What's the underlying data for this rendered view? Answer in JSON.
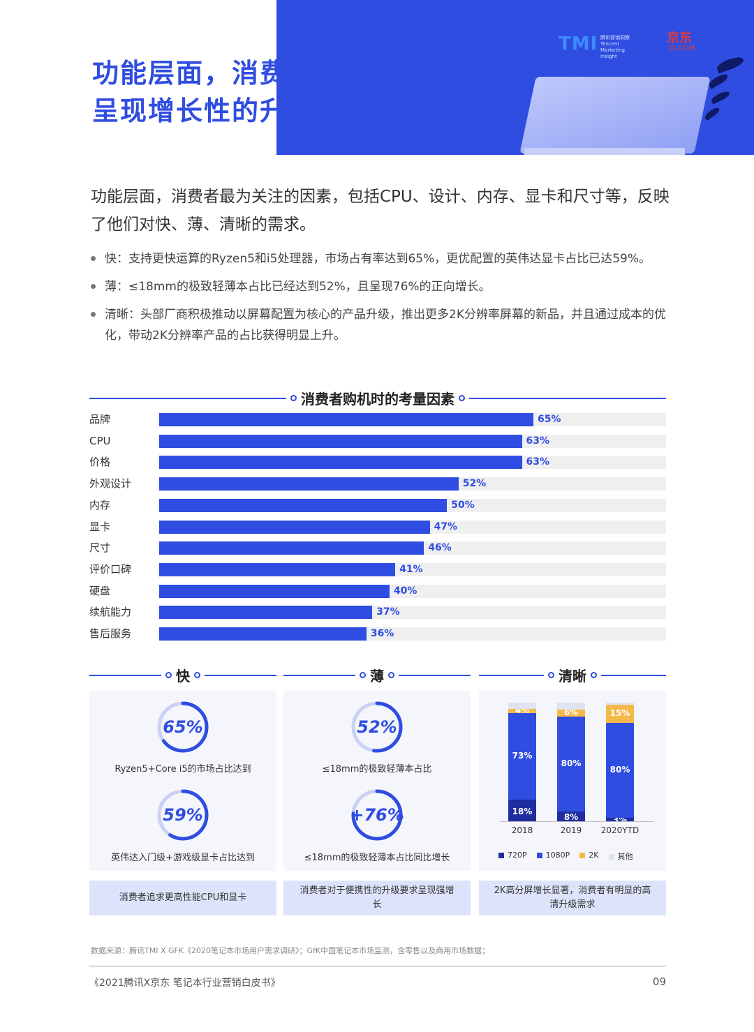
{
  "header": {
    "title_line1": "功能层面，消费者对于快、薄、高清",
    "title_line2": "呈现增长性的升级需求",
    "logo_tmi": "TMI",
    "logo_tmi_text": "腾讯营销洞察 Tencent Marketing Insight",
    "logo_jd": "京东",
    "logo_jd_sub": "JD.COM"
  },
  "intro": "功能层面，消费者最为关注的因素，包括CPU、设计、内存、显卡和尺寸等，反映了他们对快、薄、清晰的需求。",
  "bullets": [
    "快：支持更快运算的Ryzen5和i5处理器，市场占有率达到65%，更优配置的英伟达显卡占比已达59%。",
    "薄：≤18mm的极致轻薄本占比已经达到52%，且呈现76%的正向增长。",
    "清晰：头部厂商积极推动以屏幕配置为核心的产品升级，推出更多2K分辨率屏幕的新品，并且通过成本的优化，带动2K分辨率产品的占比获得明显上升。"
  ],
  "chart_data": [
    {
      "type": "bar",
      "title": "消费者购机时的考量因素",
      "categories": [
        "品牌",
        "CPU",
        "价格",
        "外观设计",
        "内存",
        "显卡",
        "尺寸",
        "评价口碑",
        "硬盘",
        "续航能力",
        "售后服务"
      ],
      "values": [
        65,
        63,
        63,
        52,
        50,
        47,
        46,
        41,
        40,
        37,
        36
      ],
      "value_labels": [
        "65%",
        "63%",
        "63%",
        "52%",
        "50%",
        "47%",
        "46%",
        "41%",
        "40%",
        "37%",
        "36%"
      ],
      "unit": "%",
      "xlim": [
        0,
        100
      ],
      "orientation": "horizontal",
      "color": "#2f4de0"
    },
    {
      "type": "bar",
      "stacked": true,
      "title": "",
      "categories": [
        "2018",
        "2019",
        "2020YTD"
      ],
      "series": [
        {
          "name": "720P",
          "color": "#1f2e9e",
          "values": [
            18,
            8,
            3
          ],
          "labels": [
            "18%",
            "8%",
            "3%"
          ]
        },
        {
          "name": "1080P",
          "color": "#2f4de0",
          "values": [
            73,
            80,
            80
          ],
          "labels": [
            "73%",
            "80%",
            "80%"
          ]
        },
        {
          "name": "2K",
          "color": "#f5b94a",
          "values": [
            4,
            6,
            15
          ],
          "labels": [
            "4%",
            "6%",
            "15%"
          ]
        },
        {
          "name": "其他",
          "color": "#dfe3f0",
          "values": [
            5,
            6,
            2
          ],
          "labels": [
            "",
            "",
            ""
          ]
        }
      ],
      "ylim": [
        0,
        100
      ]
    }
  ],
  "panels": {
    "fast": {
      "title": "快",
      "stat1_value": "65%",
      "stat1_fraction": 0.65,
      "stat1_caption": "Ryzen5+Core i5的市场占比达到",
      "stat2_value": "59%",
      "stat2_fraction": 0.59,
      "stat2_caption": "英伟达入门级+游戏级显卡占比达到",
      "summary": "消费者追求更高性能CPU和显卡"
    },
    "thin": {
      "title": "薄",
      "stat1_value": "52%",
      "stat1_fraction": 0.52,
      "stat1_caption": "≤18mm的极致轻薄本占比",
      "stat2_value": "+76%",
      "stat2_fraction": 0.76,
      "stat2_caption": "≤18mm的极致轻薄本占比同比增长",
      "summary": "消费者对于便携性的升级要求呈现强增长"
    },
    "clear": {
      "title": "清晰",
      "summary": "2K高分屏增长显著，消费者有明显的高清升级需求"
    }
  },
  "source": "数据来源：腾讯TMI X GFK《2020笔记本市场用户需求调研》；GfK中国笔记本市场监测，含零售以及商用市场数据；",
  "footer": {
    "left": "《2021腾讯X京东 笔记本行业营销白皮书》",
    "page": "09"
  }
}
